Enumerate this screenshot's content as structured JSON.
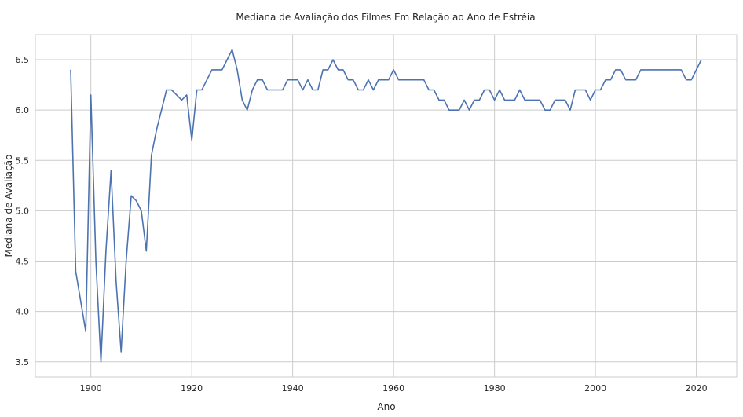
{
  "chart_data": {
    "type": "line",
    "title": "Mediana de Avaliação dos Filmes Em Relação ao Ano de Estréia",
    "xlabel": "Ano",
    "ylabel": "Mediana de Avaliação",
    "xlim": [
      1889,
      2028
    ],
    "ylim": [
      3.35,
      6.75
    ],
    "xticks": [
      1900,
      1920,
      1940,
      1960,
      1980,
      2000,
      2020
    ],
    "yticks": [
      3.5,
      4.0,
      4.5,
      5.0,
      5.5,
      6.0,
      6.5
    ],
    "ytick_labels": [
      "3.5",
      "4.0",
      "4.5",
      "5.0",
      "5.5",
      "6.0",
      "6.5"
    ],
    "grid": true,
    "color": "#4c72b0",
    "x": [
      1896,
      1897,
      1899,
      1900,
      1901,
      1902,
      1903,
      1904,
      1905,
      1906,
      1907,
      1908,
      1909,
      1910,
      1911,
      1912,
      1913,
      1914,
      1915,
      1916,
      1917,
      1918,
      1919,
      1920,
      1921,
      1922,
      1923,
      1924,
      1925,
      1926,
      1927,
      1928,
      1929,
      1930,
      1931,
      1932,
      1933,
      1934,
      1935,
      1936,
      1937,
      1938,
      1939,
      1940,
      1941,
      1942,
      1943,
      1944,
      1945,
      1946,
      1947,
      1948,
      1949,
      1950,
      1951,
      1952,
      1953,
      1954,
      1955,
      1956,
      1957,
      1958,
      1959,
      1960,
      1961,
      1962,
      1963,
      1964,
      1965,
      1966,
      1967,
      1968,
      1969,
      1970,
      1971,
      1972,
      1973,
      1974,
      1975,
      1976,
      1977,
      1978,
      1979,
      1980,
      1981,
      1982,
      1983,
      1984,
      1985,
      1986,
      1987,
      1988,
      1989,
      1990,
      1991,
      1992,
      1993,
      1994,
      1995,
      1996,
      1997,
      1998,
      1999,
      2000,
      2001,
      2002,
      2003,
      2004,
      2005,
      2006,
      2007,
      2008,
      2009,
      2010,
      2011,
      2012,
      2013,
      2014,
      2015,
      2016,
      2017,
      2018,
      2019,
      2020,
      2021
    ],
    "y": [
      6.4,
      4.4,
      3.8,
      6.15,
      4.5,
      3.5,
      4.6,
      5.4,
      4.3,
      3.6,
      4.5,
      5.15,
      5.1,
      5.0,
      4.6,
      5.55,
      5.8,
      6.0,
      6.2,
      6.2,
      6.15,
      6.1,
      6.15,
      5.7,
      6.2,
      6.2,
      6.3,
      6.4,
      6.4,
      6.4,
      6.5,
      6.6,
      6.4,
      6.1,
      6.0,
      6.2,
      6.3,
      6.3,
      6.2,
      6.2,
      6.2,
      6.2,
      6.3,
      6.3,
      6.3,
      6.2,
      6.3,
      6.2,
      6.2,
      6.4,
      6.4,
      6.5,
      6.4,
      6.4,
      6.3,
      6.3,
      6.2,
      6.2,
      6.3,
      6.2,
      6.3,
      6.3,
      6.3,
      6.4,
      6.3,
      6.3,
      6.3,
      6.3,
      6.3,
      6.3,
      6.2,
      6.2,
      6.1,
      6.1,
      6.0,
      6.0,
      6.0,
      6.1,
      6.0,
      6.1,
      6.1,
      6.2,
      6.2,
      6.1,
      6.2,
      6.1,
      6.1,
      6.1,
      6.2,
      6.1,
      6.1,
      6.1,
      6.1,
      6.0,
      6.0,
      6.1,
      6.1,
      6.1,
      6.0,
      6.2,
      6.2,
      6.2,
      6.1,
      6.2,
      6.2,
      6.3,
      6.3,
      6.4,
      6.4,
      6.3,
      6.3,
      6.3,
      6.4,
      6.4,
      6.4,
      6.4,
      6.4,
      6.4,
      6.4,
      6.4,
      6.4,
      6.3,
      6.3,
      6.4,
      6.5
    ]
  }
}
